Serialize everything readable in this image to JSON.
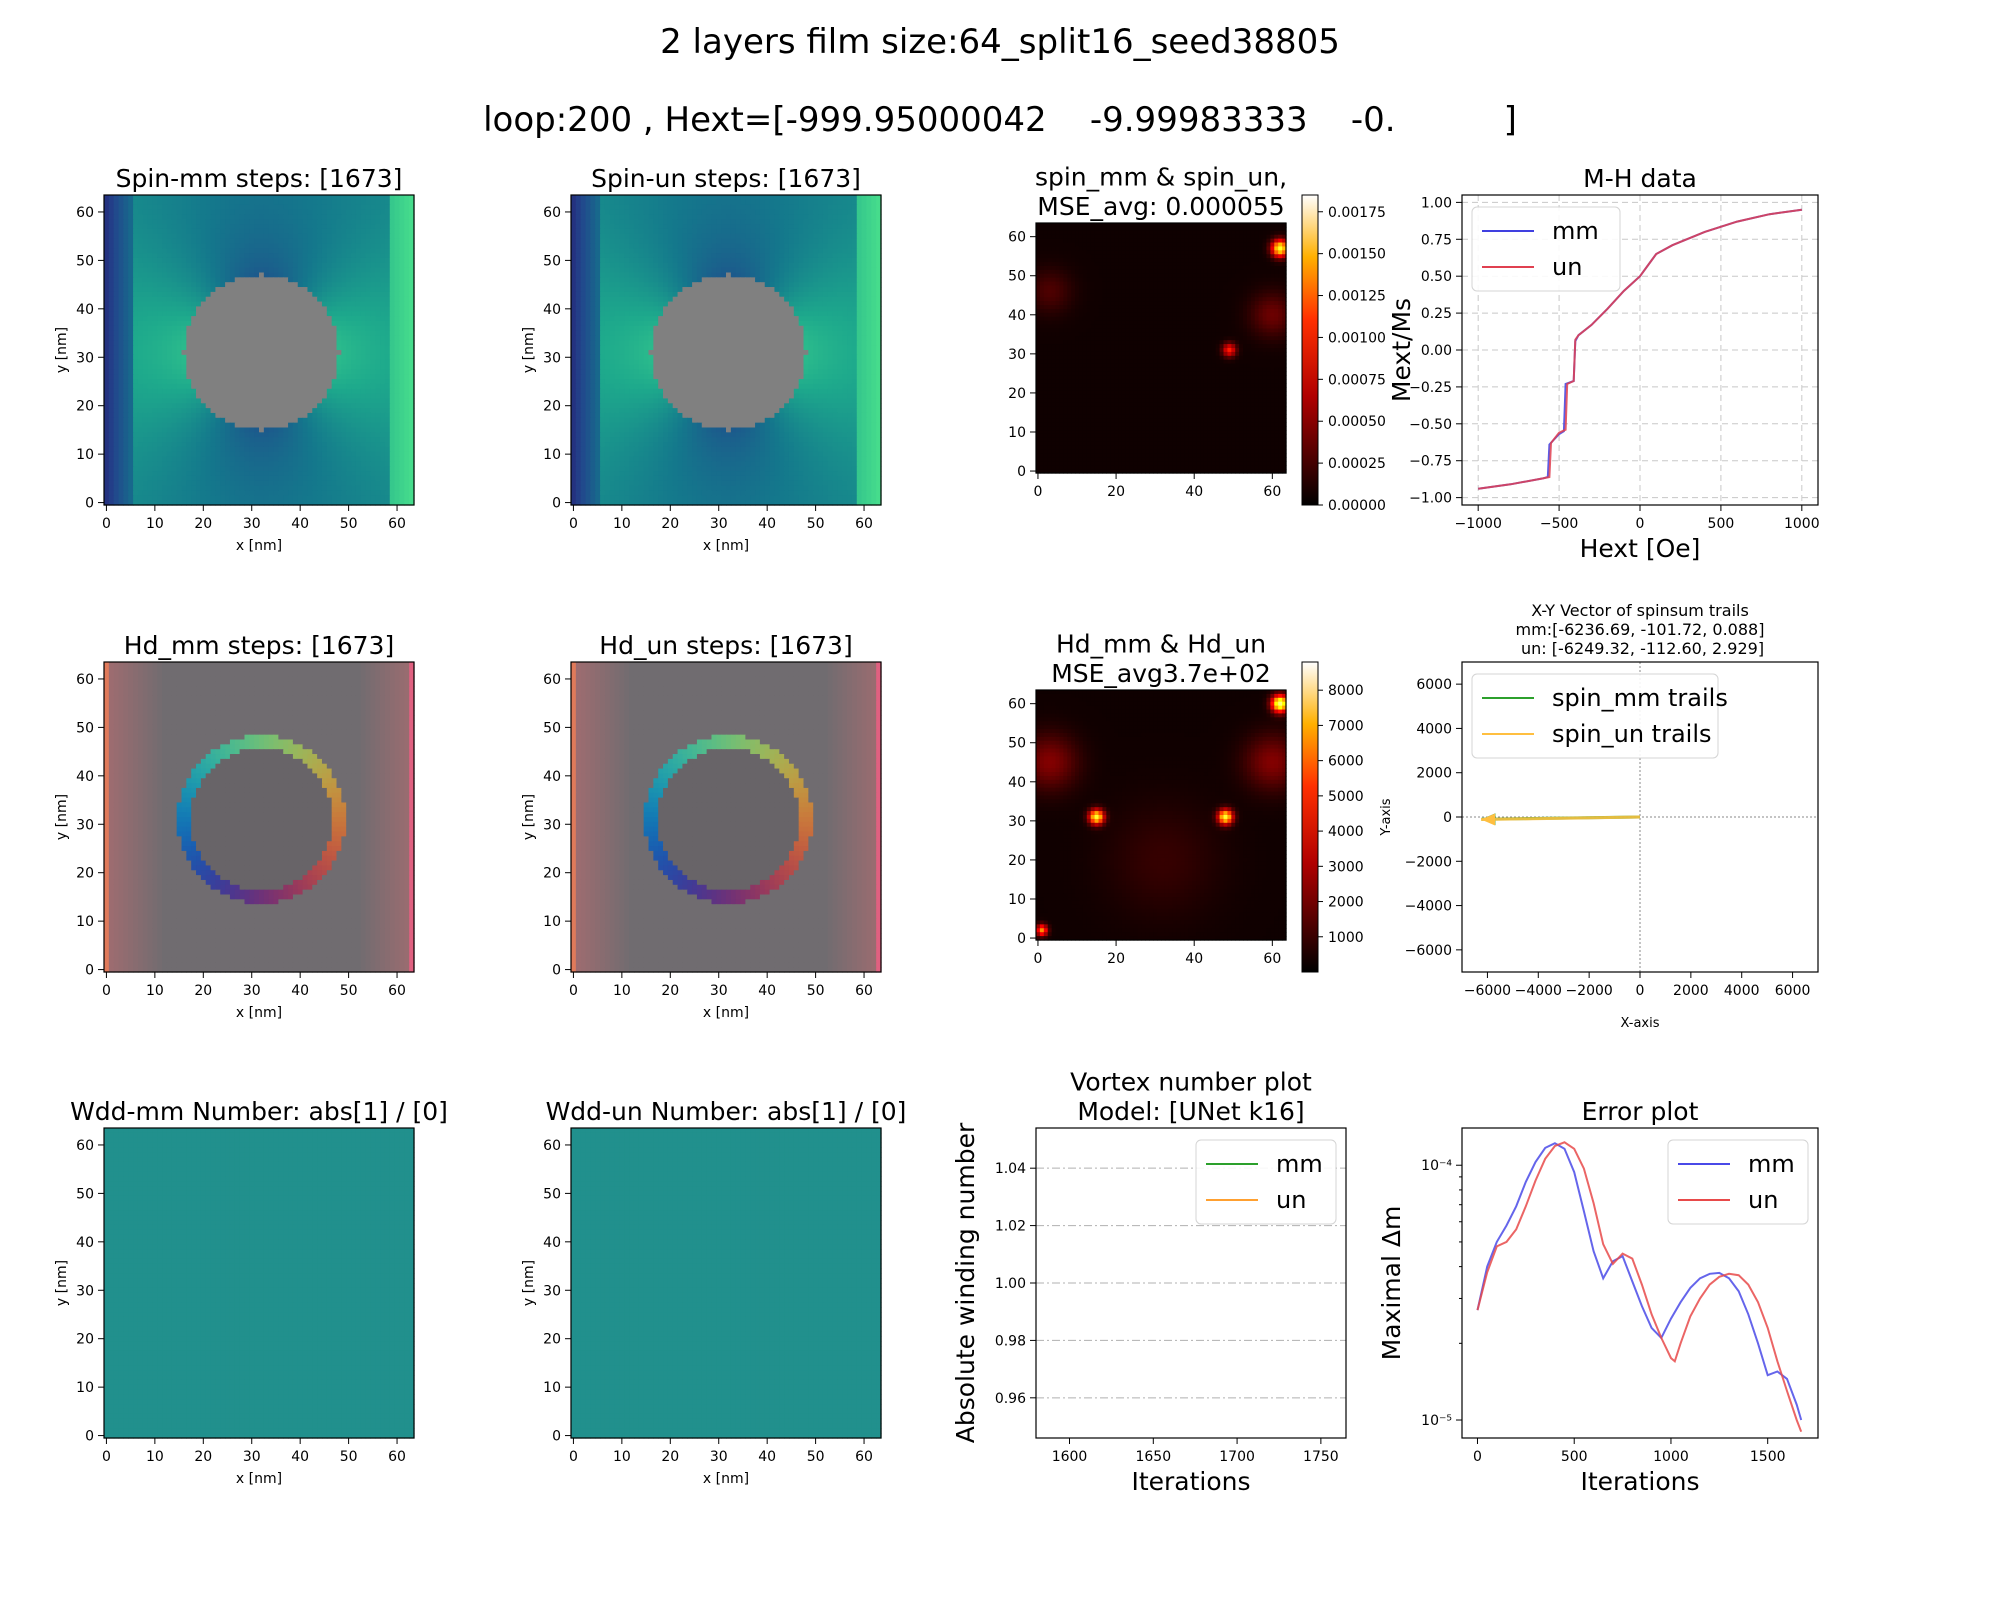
{
  "figure": {
    "title_line1": "2 layers film size:64_split16_seed38805",
    "title_line2": "loop:200 , Hext=[-999.95000042    -9.99983333    -0.          ]"
  },
  "chart_data": [
    {
      "id": "spin_mm",
      "type": "heatmap",
      "title": "Spin-mm steps: [1673]",
      "xlabel": "x [nm]",
      "ylabel": "y [nm]",
      "xlim": [
        0,
        63
      ],
      "ylim": [
        0,
        63
      ],
      "xticks": [
        0,
        10,
        20,
        30,
        40,
        50,
        60
      ],
      "yticks": [
        0,
        10,
        20,
        30,
        40,
        50,
        60
      ],
      "masked_region": {
        "shape": "circle",
        "center": [
          32,
          31
        ],
        "radius": 16,
        "color": "#808080"
      },
      "colormap": "viridis-like (blue→green)"
    },
    {
      "id": "spin_un",
      "type": "heatmap",
      "title": "Spin-un steps: [1673]",
      "xlabel": "x [nm]",
      "ylabel": "y [nm]",
      "xlim": [
        0,
        63
      ],
      "ylim": [
        0,
        63
      ],
      "xticks": [
        0,
        10,
        20,
        30,
        40,
        50,
        60
      ],
      "yticks": [
        0,
        10,
        20,
        30,
        40,
        50,
        60
      ],
      "masked_region": {
        "shape": "circle",
        "center": [
          32,
          31
        ],
        "radius": 16,
        "color": "#808080"
      },
      "colormap": "viridis-like (blue→green)"
    },
    {
      "id": "spin_mse",
      "type": "heatmap",
      "title": "spin_mm & spin_un,\nMSE_avg: 0.000055",
      "xlim": [
        0,
        63
      ],
      "ylim": [
        0,
        63
      ],
      "xticks": [
        0,
        20,
        40,
        60
      ],
      "yticks": [
        0,
        10,
        20,
        30,
        40,
        50,
        60
      ],
      "colormap": "hot",
      "colorbar": {
        "min": 0,
        "max": 0.00185,
        "ticks": [
          "0.00000",
          "0.00025",
          "0.00050",
          "0.00075",
          "0.00100",
          "0.00125",
          "0.00150",
          "0.00175"
        ]
      }
    },
    {
      "id": "mh",
      "type": "line",
      "title": "M-H data",
      "xlabel": "Hext [Oe]",
      "ylabel": "Mext/Ms",
      "xlim": [
        -1100,
        1100
      ],
      "ylim": [
        -1.05,
        1.05
      ],
      "xticks": [
        -1000,
        -500,
        0,
        500,
        1000
      ],
      "yticks": [
        -1.0,
        -0.75,
        -0.5,
        -0.25,
        0.0,
        0.25,
        0.5,
        0.75,
        1.0
      ],
      "ytick_labels": [
        "−1.00",
        "−0.75",
        "−0.50",
        "−0.25",
        "0.00",
        "0.25",
        "0.50",
        "0.75",
        "1.00"
      ],
      "xtick_labels": [
        "−1000",
        "−500",
        "0",
        "500",
        "1000"
      ],
      "grid": true,
      "legend": "upper-left",
      "series": [
        {
          "name": "mm",
          "color": "#4040e0",
          "x": [
            -1000,
            -800,
            -600,
            -570,
            -560,
            -500,
            -470,
            -460,
            -410,
            -400,
            -380,
            -300,
            -200,
            -100,
            0,
            100,
            200,
            400,
            600,
            800,
            1000
          ],
          "y": [
            -0.94,
            -0.91,
            -0.87,
            -0.86,
            -0.64,
            -0.57,
            -0.55,
            -0.23,
            -0.21,
            0.06,
            0.1,
            0.17,
            0.28,
            0.4,
            0.5,
            0.65,
            0.71,
            0.8,
            0.87,
            0.92,
            0.95
          ]
        },
        {
          "name": "un",
          "color": "#e04050",
          "x": [
            -1000,
            -800,
            -600,
            -560,
            -550,
            -500,
            -460,
            -450,
            -410,
            -400,
            -380,
            -300,
            -200,
            -100,
            0,
            100,
            200,
            400,
            600,
            800,
            1000
          ],
          "y": [
            -0.94,
            -0.91,
            -0.87,
            -0.86,
            -0.63,
            -0.56,
            -0.54,
            -0.23,
            -0.21,
            0.07,
            0.1,
            0.17,
            0.28,
            0.4,
            0.5,
            0.65,
            0.71,
            0.8,
            0.87,
            0.92,
            0.95
          ]
        }
      ]
    },
    {
      "id": "hd_mm",
      "type": "heatmap",
      "title": "Hd_mm steps: [1673]",
      "xlabel": "x [nm]",
      "ylabel": "y [nm]",
      "xlim": [
        0,
        63
      ],
      "ylim": [
        0,
        63
      ],
      "xticks": [
        0,
        10,
        20,
        30,
        40,
        50,
        60
      ],
      "yticks": [
        0,
        10,
        20,
        30,
        40,
        50,
        60
      ],
      "ring": {
        "center": [
          32,
          31
        ],
        "radius": 16
      }
    },
    {
      "id": "hd_un",
      "type": "heatmap",
      "title": "Hd_un steps: [1673]",
      "xlabel": "x [nm]",
      "ylabel": "y [nm]",
      "xlim": [
        0,
        63
      ],
      "ylim": [
        0,
        63
      ],
      "xticks": [
        0,
        10,
        20,
        30,
        40,
        50,
        60
      ],
      "yticks": [
        0,
        10,
        20,
        30,
        40,
        50,
        60
      ],
      "ring": {
        "center": [
          32,
          31
        ],
        "radius": 16
      }
    },
    {
      "id": "hd_mse",
      "type": "heatmap",
      "title": "Hd_mm & Hd_un\nMSE_avg3.7e+02",
      "xlim": [
        0,
        63
      ],
      "ylim": [
        0,
        63
      ],
      "xticks": [
        0,
        20,
        40,
        60
      ],
      "yticks": [
        0,
        10,
        20,
        30,
        40,
        50,
        60
      ],
      "colormap": "hot",
      "colorbar": {
        "min": 0,
        "max": 8800,
        "ticks": [
          "1000",
          "2000",
          "3000",
          "4000",
          "5000",
          "6000",
          "7000",
          "8000"
        ]
      }
    },
    {
      "id": "xy",
      "type": "line",
      "title": "X-Y Vector of spinsum trails\nmm:[-6236.69, -101.72, 0.088]\n un: [-6249.32, -112.60, 2.929]",
      "xlabel": "X-axis",
      "ylabel": "Y-axis",
      "xlim": [
        -7000,
        7000
      ],
      "ylim": [
        -7000,
        7000
      ],
      "xticks": [
        -6000,
        -4000,
        -2000,
        0,
        2000,
        4000,
        6000
      ],
      "xtick_labels": [
        "−6000",
        "−4000",
        "−2000",
        "0",
        "2000",
        "4000",
        "6000"
      ],
      "yticks": [
        -6000,
        -4000,
        -2000,
        0,
        2000,
        4000,
        6000
      ],
      "ytick_labels": [
        "−6000",
        "−4000",
        "−2000",
        "0",
        "2000",
        "4000",
        "6000"
      ],
      "legend": "upper-left",
      "series": [
        {
          "name": "spin_mm trails",
          "color": "#2ca02c",
          "x": [
            0,
            -6236.69
          ],
          "y": [
            0,
            -101.72
          ]
        },
        {
          "name": "spin_un trails",
          "color": "#ffbf40",
          "x": [
            0,
            -6249.32
          ],
          "y": [
            0,
            -112.6
          ]
        }
      ]
    },
    {
      "id": "wdd_mm",
      "type": "heatmap",
      "title": "Wdd-mm Number: abs[1] / [0]",
      "xlabel": "x [nm]",
      "ylabel": "y [nm]",
      "xlim": [
        0,
        63
      ],
      "ylim": [
        0,
        63
      ],
      "xticks": [
        0,
        10,
        20,
        30,
        40,
        50,
        60
      ],
      "yticks": [
        0,
        10,
        20,
        30,
        40,
        50,
        60
      ],
      "color": "#21908d"
    },
    {
      "id": "wdd_un",
      "type": "heatmap",
      "title": "Wdd-un Number: abs[1] / [0]",
      "xlabel": "x [nm]",
      "ylabel": "y [nm]",
      "xlim": [
        0,
        63
      ],
      "ylim": [
        0,
        63
      ],
      "xticks": [
        0,
        10,
        20,
        30,
        40,
        50,
        60
      ],
      "yticks": [
        0,
        10,
        20,
        30,
        40,
        50,
        60
      ],
      "color": "#21908d"
    },
    {
      "id": "vortex",
      "type": "line",
      "title": "Vortex number plot\nModel: [UNet k16]",
      "xlabel": "Iterations",
      "ylabel": "Absolute winding number",
      "xlim": [
        1580,
        1765
      ],
      "ylim": [
        0.946,
        1.054
      ],
      "xticks": [
        1600,
        1650,
        1700,
        1750
      ],
      "yticks": [
        0.96,
        0.98,
        1.0,
        1.02,
        1.04
      ],
      "ytick_labels": [
        "0.96",
        "0.98",
        "1.00",
        "1.02",
        "1.04"
      ],
      "grid": "horizontal dash-dot",
      "legend": "upper-right",
      "series": [
        {
          "name": "mm",
          "color": "#2ca02c",
          "x": [],
          "y": []
        },
        {
          "name": "un",
          "color": "#ffa030",
          "x": [],
          "y": []
        }
      ]
    },
    {
      "id": "error",
      "type": "line",
      "title": "Error plot",
      "xlabel": "Iterations",
      "ylabel": "Maximal Δm",
      "xlim": [
        -80,
        1760
      ],
      "ylim": [
        8.5e-06,
        0.00014
      ],
      "yscale": "log",
      "xticks": [
        0,
        500,
        1000,
        1500
      ],
      "ytick_labels": [
        "10⁻⁵",
        "10⁻⁴"
      ],
      "yticks": [
        1e-05,
        0.0001
      ],
      "legend": "upper-right",
      "series": [
        {
          "name": "mm",
          "color": "#4a4ae8",
          "x": [
            0,
            50,
            100,
            150,
            200,
            250,
            300,
            350,
            400,
            450,
            500,
            550,
            600,
            650,
            700,
            750,
            800,
            850,
            900,
            950,
            1000,
            1050,
            1100,
            1150,
            1200,
            1250,
            1300,
            1350,
            1400,
            1450,
            1500,
            1550,
            1600,
            1650,
            1673
          ],
          "y": [
            2.7e-05,
            4e-05,
            5e-05,
            5.8e-05,
            6.9e-05,
            8.6e-05,
            0.000103,
            0.000117,
            0.000122,
            0.000116,
            9.4e-05,
            6.6e-05,
            4.6e-05,
            3.6e-05,
            4.2e-05,
            4.4e-05,
            3.5e-05,
            2.8e-05,
            2.3e-05,
            2.1e-05,
            2.5e-05,
            2.9e-05,
            3.3e-05,
            3.6e-05,
            3.75e-05,
            3.78e-05,
            3.6e-05,
            3.2e-05,
            2.6e-05,
            2e-05,
            1.5e-05,
            1.55e-05,
            1.45e-05,
            1.15e-05,
            1e-05
          ]
        },
        {
          "name": "un",
          "color": "#e84a4a",
          "x": [
            0,
            50,
            100,
            150,
            200,
            250,
            300,
            350,
            400,
            450,
            500,
            550,
            600,
            650,
            700,
            750,
            800,
            850,
            900,
            950,
            1000,
            1020,
            1050,
            1100,
            1150,
            1200,
            1250,
            1300,
            1350,
            1400,
            1450,
            1500,
            1550,
            1600,
            1650,
            1673
          ],
          "y": [
            2.7e-05,
            3.8e-05,
            4.8e-05,
            5e-05,
            5.6e-05,
            6.9e-05,
            8.7e-05,
            0.000106,
            0.000119,
            0.000123,
            0.000116,
            9.7e-05,
            7.1e-05,
            4.9e-05,
            4.1e-05,
            4.5e-05,
            4.3e-05,
            3.4e-05,
            2.6e-05,
            2.1e-05,
            1.75e-05,
            1.7e-05,
            2e-05,
            2.55e-05,
            3e-05,
            3.4e-05,
            3.65e-05,
            3.75e-05,
            3.7e-05,
            3.4e-05,
            2.9e-05,
            2.3e-05,
            1.7e-05,
            1.3e-05,
            1e-05,
            9e-06
          ]
        }
      ]
    }
  ]
}
